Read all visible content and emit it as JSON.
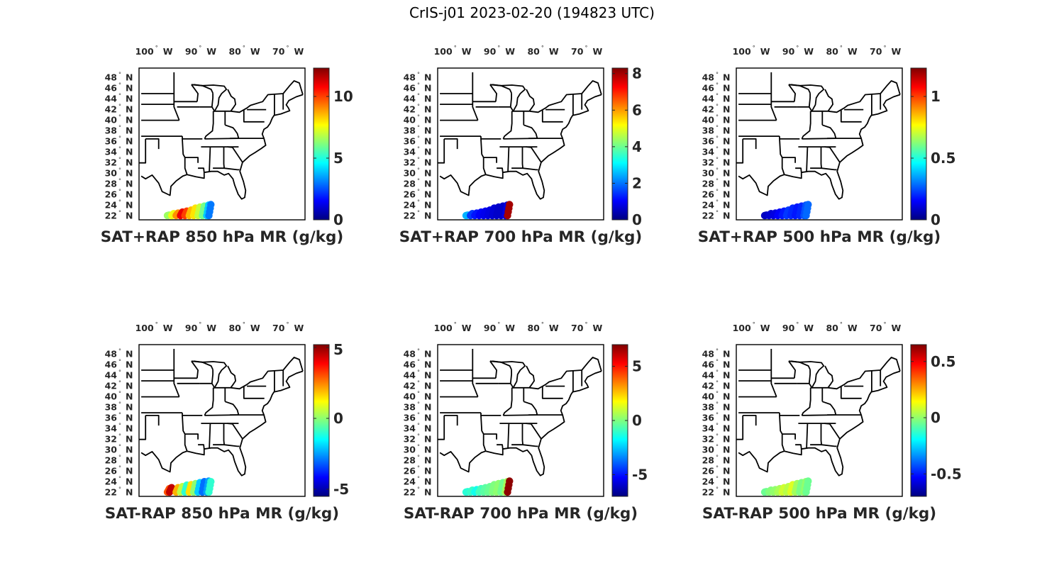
{
  "figure": {
    "title": "CrIS-j01 2023-02-20 (194823 UTC)"
  },
  "map_axes": {
    "lon_ticks": [
      "100",
      "90",
      "80",
      "70"
    ],
    "lon_suffix": "W",
    "lat_ticks": [
      "48",
      "46",
      "44",
      "42",
      "40",
      "38",
      "36",
      "34",
      "32",
      "30",
      "28",
      "26",
      "24",
      "22"
    ],
    "lat_suffix": "N",
    "degree_symbol": "°"
  },
  "colormap": [
    "#00007f",
    "#0000ff",
    "#007fff",
    "#00ffff",
    "#7fff7f",
    "#ffff00",
    "#ff7f00",
    "#ff0000",
    "#7f0000"
  ],
  "chart_data": [
    {
      "type": "scatter",
      "title": "SAT+RAP 850 hPa MR (g/kg)",
      "clim": [
        0,
        12.3
      ],
      "cbar_ticks": [
        0,
        5,
        10
      ],
      "points": [
        [
          -98,
          22.2,
          6.5
        ],
        [
          -97,
          22.5,
          7.5
        ],
        [
          -96,
          22.6,
          9
        ],
        [
          -95,
          22.8,
          11
        ],
        [
          -94,
          23,
          10
        ],
        [
          -93,
          23.2,
          8.5
        ],
        [
          -92,
          23.6,
          8
        ],
        [
          -91,
          23.8,
          7
        ],
        [
          -90,
          24,
          6
        ],
        [
          -89,
          24.2,
          4
        ],
        [
          -88.5,
          24.3,
          3
        ]
      ]
    },
    {
      "type": "scatter",
      "title": "SAT+RAP 700 hPa MR (g/kg)",
      "clim": [
        0,
        8.3
      ],
      "cbar_ticks": [
        0,
        2,
        4,
        6,
        8
      ],
      "points": [
        [
          -98,
          22.2,
          2.5
        ],
        [
          -97,
          22.5,
          1.5
        ],
        [
          -96,
          22.6,
          1.2
        ],
        [
          -95,
          22.8,
          1
        ],
        [
          -94,
          23,
          0.9
        ],
        [
          -93,
          23.2,
          0.8
        ],
        [
          -92,
          23.6,
          0.7
        ],
        [
          -91,
          23.8,
          0.6
        ],
        [
          -90,
          24,
          0.6
        ],
        [
          -89,
          24.2,
          0.8
        ],
        [
          -88.5,
          24.3,
          8
        ]
      ]
    },
    {
      "type": "scatter",
      "title": "SAT+RAP 500 hPa MR (g/kg)",
      "clim": [
        0,
        1.23
      ],
      "cbar_ticks": [
        0,
        0.5,
        1
      ],
      "points": [
        [
          -98,
          22.2,
          0.08
        ],
        [
          -97,
          22.5,
          0.1
        ],
        [
          -96,
          22.6,
          0.12
        ],
        [
          -95,
          22.8,
          0.15
        ],
        [
          -94,
          23,
          0.18
        ],
        [
          -93,
          23.2,
          0.22
        ],
        [
          -92,
          23.6,
          0.2
        ],
        [
          -91,
          23.8,
          0.18
        ],
        [
          -90,
          24,
          0.2
        ],
        [
          -89,
          24.2,
          0.25
        ],
        [
          -88.5,
          24.3,
          0.28
        ]
      ]
    },
    {
      "type": "scatter",
      "title": "SAT-RAP 850 hPa MR (g/kg)",
      "clim": [
        -5.5,
        5.2
      ],
      "cbar_ticks": [
        -5,
        0,
        5
      ],
      "points": [
        [
          -98,
          22.8,
          3
        ],
        [
          -97.5,
          23,
          4.5
        ],
        [
          -96,
          23,
          2
        ],
        [
          -95,
          23.2,
          0.5
        ],
        [
          -94,
          23.5,
          -1
        ],
        [
          -93,
          23.6,
          1.5
        ],
        [
          -92,
          23.8,
          0
        ],
        [
          -91,
          24,
          -2
        ],
        [
          -90,
          24.2,
          -3
        ],
        [
          -89,
          24.3,
          -2.5
        ],
        [
          -88.5,
          24.2,
          -1
        ]
      ]
    },
    {
      "type": "scatter",
      "title": "SAT-RAP 700 hPa MR (g/kg)",
      "clim": [
        -7,
        7
      ],
      "cbar_ticks": [
        -5,
        0,
        5
      ],
      "points": [
        [
          -98,
          22.2,
          -1.2
        ],
        [
          -97,
          22.5,
          -1
        ],
        [
          -96,
          22.6,
          -1.5
        ],
        [
          -95,
          22.8,
          -0.8
        ],
        [
          -94,
          23,
          -0.5
        ],
        [
          -93,
          23.2,
          -0.3
        ],
        [
          -92,
          23.6,
          0
        ],
        [
          -91,
          23.8,
          0.2
        ],
        [
          -90,
          24,
          -0.2
        ],
        [
          -89,
          24.2,
          0.5
        ],
        [
          -88.5,
          24.3,
          6.8
        ]
      ]
    },
    {
      "type": "scatter",
      "title": "SAT-RAP 500 hPa MR (g/kg)",
      "clim": [
        -0.7,
        0.65
      ],
      "cbar_ticks": [
        -0.5,
        0,
        0.5
      ],
      "points": [
        [
          -98,
          22.2,
          -0.05
        ],
        [
          -97,
          22.5,
          -0.02
        ],
        [
          -96,
          22.6,
          0
        ],
        [
          -95,
          22.8,
          0.03
        ],
        [
          -94,
          23,
          0.08
        ],
        [
          -93,
          23.2,
          0.05
        ],
        [
          -92,
          23.6,
          0.1
        ],
        [
          -91,
          23.8,
          0.02
        ],
        [
          -90,
          24,
          -0.03
        ],
        [
          -89,
          24.2,
          0
        ],
        [
          -88.5,
          24.3,
          -0.05
        ]
      ]
    }
  ]
}
